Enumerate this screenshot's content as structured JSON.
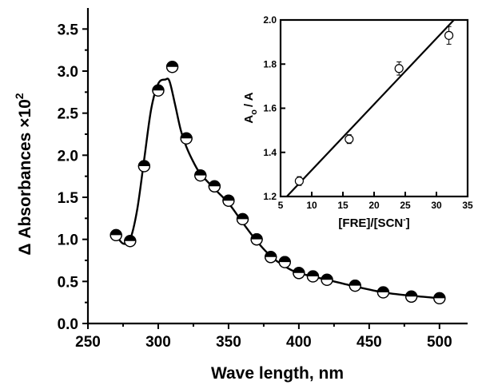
{
  "chart_data": [
    {
      "type": "scatter",
      "title": "",
      "xlabel": "Wave length, nm",
      "ylabel": "Δ Absorbances ×10",
      "ylabel_sup": "2",
      "xlim": [
        250,
        520
      ],
      "ylim": [
        0,
        3.75
      ],
      "xticks": [
        250,
        300,
        350,
        400,
        450,
        500
      ],
      "yticks": [
        0.0,
        0.5,
        1.0,
        1.5,
        2.0,
        2.5,
        3.0,
        3.5
      ],
      "xtick_labels": [
        "250",
        "300",
        "350",
        "400",
        "450",
        "500"
      ],
      "ytick_labels": [
        "0.0",
        "0.5",
        "1.0",
        "1.5",
        "2.0",
        "2.5",
        "3.0",
        "3.5"
      ],
      "grid": false,
      "marker": "half-filled circle",
      "series": [
        {
          "x": [
            270,
            280,
            290,
            300,
            310,
            320,
            330,
            340,
            350,
            360,
            370,
            380,
            390,
            400,
            410,
            420,
            440,
            460,
            480,
            500
          ],
          "y": [
            1.05,
            0.98,
            1.87,
            2.77,
            3.05,
            2.2,
            1.76,
            1.63,
            1.46,
            1.24,
            1.0,
            0.79,
            0.73,
            0.6,
            0.56,
            0.52,
            0.45,
            0.37,
            0.32,
            0.3
          ]
        }
      ],
      "fit_curve": {
        "x": [
          270,
          275,
          280,
          285,
          290,
          295,
          300,
          305,
          308,
          312,
          316,
          320,
          325,
          330,
          340,
          350,
          360,
          370,
          380,
          390,
          400,
          420,
          440,
          460,
          480,
          500
        ],
        "y": [
          1.05,
          0.95,
          1.0,
          1.35,
          1.95,
          2.55,
          2.85,
          2.9,
          2.88,
          2.6,
          2.3,
          2.1,
          1.92,
          1.78,
          1.6,
          1.43,
          1.2,
          0.98,
          0.8,
          0.68,
          0.6,
          0.52,
          0.44,
          0.37,
          0.33,
          0.3
        ]
      }
    },
    {
      "type": "scatter",
      "title": "",
      "xlabel": "[FRE]/[SCN",
      "xlabel_sup": "-",
      "xlabel_end": "]",
      "ylabel": "A",
      "ylabel_sub": "o",
      "ylabel_end": "/ A",
      "xlim": [
        5,
        35
      ],
      "ylim": [
        1.2,
        2.0
      ],
      "xticks": [
        5,
        10,
        15,
        20,
        25,
        30,
        35
      ],
      "yticks": [
        1.2,
        1.4,
        1.6,
        1.8,
        2.0
      ],
      "xtick_labels": [
        "5",
        "10",
        "15",
        "20",
        "25",
        "30",
        "35"
      ],
      "ytick_labels": [
        "1.2",
        "1.4",
        "1.6",
        "1.8",
        "2.0"
      ],
      "grid": false,
      "marker": "open circle with error bars",
      "series": [
        {
          "x": [
            8,
            16,
            24,
            32
          ],
          "y": [
            1.27,
            1.46,
            1.78,
            1.93
          ],
          "err": [
            0.02,
            0.02,
            0.03,
            0.04
          ]
        }
      ],
      "fit_line": {
        "x": [
          6,
          32.8
        ],
        "y": [
          1.2,
          2.0
        ]
      }
    }
  ]
}
